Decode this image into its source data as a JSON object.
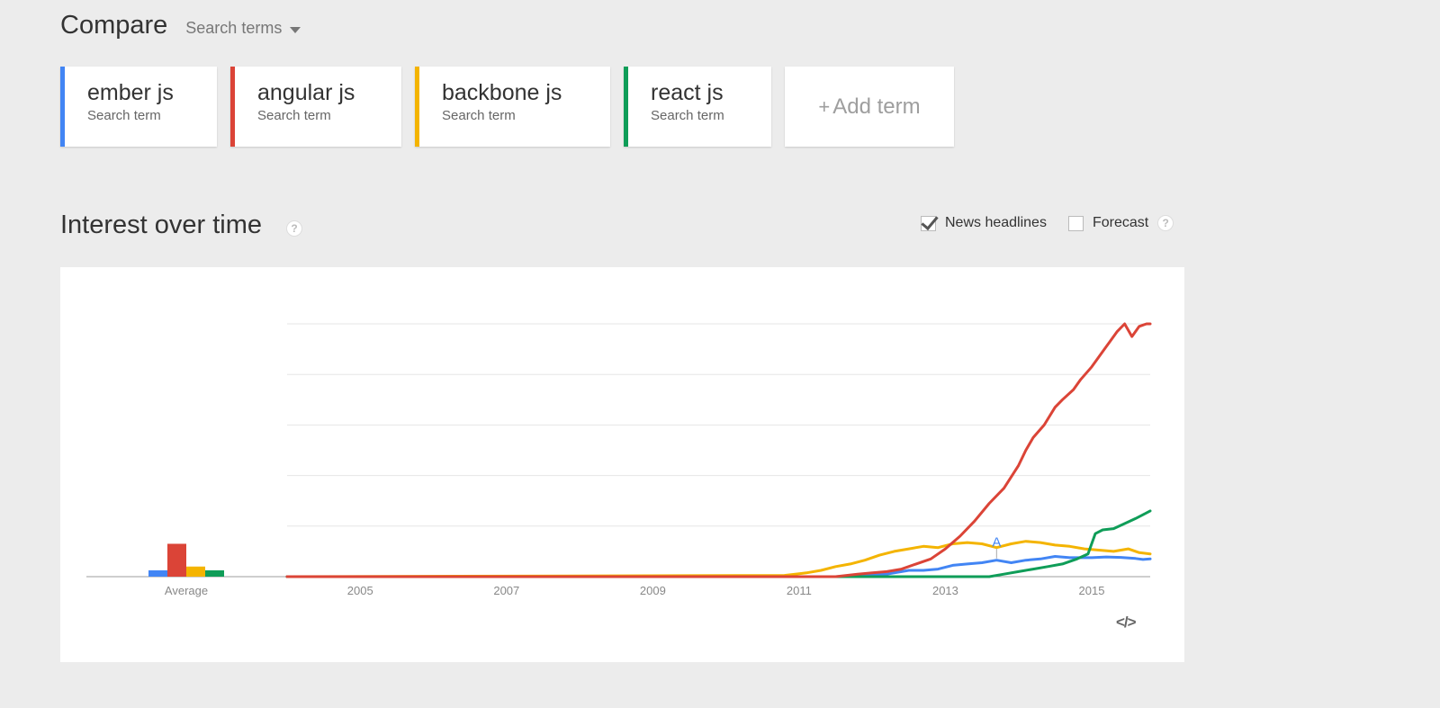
{
  "header": {
    "title": "Compare",
    "dropdown_label": "Search terms"
  },
  "terms": [
    {
      "name": "ember js",
      "sub": "Search term",
      "color": "#4285f4"
    },
    {
      "name": "angular js",
      "sub": "Search term",
      "color": "#db4437"
    },
    {
      "name": "backbone js",
      "sub": "Search term",
      "color": "#f4b400"
    },
    {
      "name": "react js",
      "sub": "Search term",
      "color": "#0f9d58"
    }
  ],
  "add_term": {
    "plus": "+",
    "label": "Add term"
  },
  "section": {
    "title": "Interest over time",
    "help": "?"
  },
  "options": {
    "news_label": "News headlines",
    "news_checked": true,
    "forecast_label": "Forecast",
    "forecast_checked": false,
    "help": "?"
  },
  "embed_label": "</>",
  "chart_data": {
    "type": "line",
    "ylim": [
      0,
      100
    ],
    "xlim": [
      2004.0,
      2015.8
    ],
    "x_ticks": [
      "2005",
      "2007",
      "2009",
      "2011",
      "2013",
      "2015"
    ],
    "x_tick_values": [
      2005,
      2007,
      2009,
      2011,
      2013,
      2015
    ],
    "average_label": "Average",
    "average_bars": [
      {
        "name": "ember js",
        "value": 2.5,
        "color": "#4285f4"
      },
      {
        "name": "angular js",
        "value": 13,
        "color": "#db4437"
      },
      {
        "name": "backbone js",
        "value": 4,
        "color": "#f4b400"
      },
      {
        "name": "react js",
        "value": 2.5,
        "color": "#0f9d58"
      }
    ],
    "annotation": {
      "label": "A",
      "x": 2013.7,
      "series": "ember js"
    },
    "series": [
      {
        "name": "ember js",
        "color": "#4285f4",
        "x": [
          2004.0,
          2011.5,
          2011.9,
          2012.2,
          2012.4,
          2012.5,
          2012.7,
          2012.9,
          2013.1,
          2013.3,
          2013.5,
          2013.7,
          2013.9,
          2014.1,
          2014.3,
          2014.5,
          2014.7,
          2015.0,
          2015.2,
          2015.4,
          2015.6,
          2015.7,
          2015.8
        ],
        "y": [
          0,
          0,
          0.5,
          1,
          2,
          2.5,
          2.5,
          3,
          4.5,
          5,
          5.5,
          6.5,
          5.5,
          6.5,
          7,
          8,
          7.5,
          7.5,
          7.8,
          7.6,
          7.2,
          6.8,
          7
        ]
      },
      {
        "name": "angular js",
        "color": "#db4437",
        "x": [
          2004.0,
          2011.5,
          2011.8,
          2012.0,
          2012.2,
          2012.4,
          2012.6,
          2012.8,
          2013.0,
          2013.2,
          2013.4,
          2013.6,
          2013.8,
          2014.0,
          2014.1,
          2014.2,
          2014.35,
          2014.5,
          2014.6,
          2014.75,
          2014.85,
          2015.0,
          2015.1,
          2015.2,
          2015.35,
          2015.45,
          2015.55,
          2015.65,
          2015.75,
          2015.8
        ],
        "y": [
          0,
          0,
          1,
          1.5,
          2,
          3,
          5,
          7,
          11,
          16,
          22,
          29,
          35,
          44,
          50,
          55,
          60,
          67,
          70,
          74,
          78,
          83,
          87,
          91,
          97,
          100,
          95,
          99,
          100,
          100
        ]
      },
      {
        "name": "backbone js",
        "color": "#f4b400",
        "x": [
          2004.0,
          2010.8,
          2011.1,
          2011.3,
          2011.5,
          2011.7,
          2011.9,
          2012.1,
          2012.3,
          2012.5,
          2012.7,
          2012.9,
          2013.1,
          2013.3,
          2013.5,
          2013.7,
          2013.9,
          2014.1,
          2014.3,
          2014.5,
          2014.7,
          2014.9,
          2015.1,
          2015.3,
          2015.5,
          2015.65,
          2015.8
        ],
        "y": [
          0,
          0.5,
          1.5,
          2.5,
          4,
          5,
          6.5,
          8.5,
          10,
          11,
          12,
          11.5,
          13,
          13.5,
          13,
          11.5,
          13,
          14,
          13.5,
          12.5,
          12,
          11,
          10.5,
          10,
          11,
          9.5,
          9
        ]
      },
      {
        "name": "react js",
        "color": "#0f9d58",
        "x": [
          2004.0,
          2013.6,
          2013.8,
          2014.0,
          2014.2,
          2014.4,
          2014.6,
          2014.8,
          2014.95,
          2015.05,
          2015.15,
          2015.3,
          2015.45,
          2015.6,
          2015.7,
          2015.8
        ],
        "y": [
          0,
          0,
          1,
          2,
          3,
          4,
          5,
          7,
          9,
          17,
          18.5,
          19,
          21,
          23,
          24.5,
          26
        ]
      }
    ]
  }
}
